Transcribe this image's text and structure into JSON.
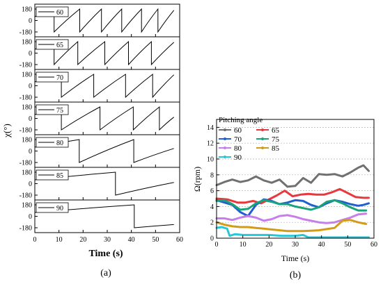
{
  "chart_data": [
    {
      "type": "line",
      "panel_label": "(a)",
      "xlabel": "Time (s)",
      "ylabel": "χ(°)",
      "xlim": [
        0,
        60
      ],
      "ylim": [
        -180,
        180
      ],
      "xticks": [
        "0",
        "10",
        "20",
        "30",
        "40",
        "50",
        "60"
      ],
      "yticks": [
        "180",
        "0",
        "-180"
      ],
      "line_color": "#000000",
      "series": [
        {
          "name": "60",
          "rotations": [
            [
              0,
              8
            ],
            [
              8,
              18.6
            ],
            [
              18.6,
              27.6
            ],
            [
              27.6,
              36
            ],
            [
              36,
              44.2
            ],
            [
              44.2,
              51
            ],
            [
              51,
              57.6
            ]
          ],
          "end_y": 160
        },
        {
          "name": "65",
          "rotations": [
            [
              0,
              8
            ],
            [
              8,
              17.8
            ],
            [
              17.8,
              29
            ],
            [
              29,
              38.8
            ],
            [
              38.8,
              48.3
            ],
            [
              48.3,
              57.6
            ]
          ],
          "end_y": 170
        },
        {
          "name": "70",
          "rotations": [
            [
              0,
              11
            ],
            [
              11,
              24.4
            ],
            [
              24.4,
              37.6
            ],
            [
              37.6,
              48.8
            ],
            [
              48.8,
              57.6
            ]
          ],
          "end_y": 172
        },
        {
          "name": "75",
          "rotations": [
            [
              0,
              11
            ],
            [
              11,
              27
            ],
            [
              27,
              40.8
            ],
            [
              40.8,
              51.6
            ],
            [
              51.6,
              57.6
            ]
          ],
          "end_y": 20
        },
        {
          "name": "80",
          "rotations": [
            [
              0,
              18.4
            ],
            [
              18.4,
              41
            ],
            [
              41,
              57.6
            ]
          ],
          "end_y": 40
        },
        {
          "name": "85",
          "rotations": [
            [
              0,
              33.4
            ],
            [
              33.4,
              57.6
            ]
          ],
          "end_y": 20
        },
        {
          "name": "90",
          "rotations": [
            [
              0,
              41.2
            ],
            [
              41.2,
              57.6
            ]
          ],
          "end_y": -130
        }
      ]
    },
    {
      "type": "line",
      "panel_label": "(b)",
      "xlabel": "Time (s)",
      "ylabel": "Ω(rpm)",
      "legend_title": "Pitching angle",
      "legend_placement": "top-left",
      "xlim": [
        0,
        60
      ],
      "ylim": [
        0,
        15
      ],
      "xticks": [
        0,
        10,
        20,
        30,
        40,
        50,
        60
      ],
      "yticks": [
        0,
        2,
        4,
        6,
        8,
        10,
        12,
        14
      ],
      "grid": "horizontal-dashed",
      "series": [
        {
          "name": "60",
          "color": "#707070",
          "x": [
            0,
            3,
            6,
            9,
            12,
            15,
            18,
            21,
            24,
            27,
            30,
            33,
            36,
            39,
            42,
            45,
            48,
            51,
            54,
            56,
            58
          ],
          "y": [
            6.7,
            7.1,
            7.4,
            7.1,
            7.3,
            7.8,
            7.3,
            7.0,
            7.4,
            6.5,
            6.6,
            7.6,
            7.0,
            8.1,
            8.0,
            8.1,
            7.8,
            8.3,
            8.9,
            9.2,
            8.5
          ]
        },
        {
          "name": "65",
          "color": "#e8383d",
          "x": [
            0,
            4,
            8,
            11,
            14,
            17,
            20,
            23,
            26,
            29,
            32,
            35,
            38,
            41,
            44,
            47,
            50,
            53,
            56,
            58
          ],
          "y": [
            5.0,
            4.9,
            4.5,
            4.5,
            4.7,
            4.4,
            4.9,
            5.4,
            6.0,
            5.3,
            5.5,
            5.6,
            5.5,
            5.5,
            5.8,
            6.2,
            5.7,
            5.2,
            5.1,
            5.1
          ]
        },
        {
          "name": "70",
          "color": "#1f5fcf",
          "x": [
            0,
            3,
            6,
            9,
            12,
            15,
            18,
            21,
            24,
            27,
            30,
            33,
            36,
            39,
            42,
            45,
            48,
            51,
            54,
            56,
            58
          ],
          "y": [
            4.8,
            4.5,
            4.2,
            3.3,
            2.8,
            4.2,
            4.9,
            4.7,
            4.3,
            4.5,
            4.8,
            4.7,
            4.2,
            3.9,
            4.4,
            4.8,
            4.6,
            4.3,
            4.1,
            4.2,
            4.4
          ]
        },
        {
          "name": "75",
          "color": "#1aa37a",
          "x": [
            0,
            3,
            6,
            9,
            12,
            15,
            18,
            21,
            24,
            27,
            30,
            33,
            36,
            39,
            42,
            45,
            48,
            51,
            54,
            57
          ],
          "y": [
            4.7,
            4.8,
            4.3,
            3.6,
            3.7,
            4.4,
            4.8,
            4.6,
            4.3,
            4.3,
            4.0,
            3.8,
            3.6,
            3.9,
            4.6,
            4.8,
            4.4,
            3.9,
            3.5,
            3.5
          ]
        },
        {
          "name": "80",
          "color": "#c77dea",
          "x": [
            0,
            3,
            6,
            9,
            12,
            15,
            18,
            21,
            24,
            27,
            30,
            33,
            36,
            39,
            42,
            45,
            48,
            51,
            54,
            57
          ],
          "y": [
            2.5,
            2.5,
            2.3,
            2.6,
            2.8,
            2.6,
            2.2,
            2.4,
            2.8,
            2.9,
            2.7,
            2.4,
            2.2,
            2.0,
            1.9,
            2.0,
            2.3,
            2.6,
            3.0,
            3.1
          ]
        },
        {
          "name": "85",
          "color": "#d39b16",
          "x": [
            0,
            3,
            6,
            9,
            12,
            15,
            18,
            21,
            24,
            27,
            30,
            33,
            36,
            39,
            42,
            45,
            48,
            51,
            54,
            57
          ],
          "y": [
            2.0,
            1.7,
            1.5,
            1.4,
            1.4,
            1.3,
            1.2,
            1.1,
            1.0,
            0.9,
            0.9,
            0.9,
            0.95,
            1.0,
            1.15,
            1.3,
            2.2,
            2.3,
            2.0,
            1.8
          ]
        },
        {
          "name": "90",
          "color": "#29c6d6",
          "x": [
            0,
            2,
            4,
            5,
            7,
            10,
            15,
            20,
            25,
            30,
            33,
            35,
            40,
            45,
            50,
            55,
            58
          ],
          "y": [
            1.3,
            1.4,
            1.2,
            0.3,
            0.5,
            0.4,
            0.4,
            0.4,
            0.3,
            0.3,
            0.4,
            0.1,
            0.1,
            0.1,
            0.1,
            0.1,
            0.1
          ]
        }
      ]
    }
  ]
}
